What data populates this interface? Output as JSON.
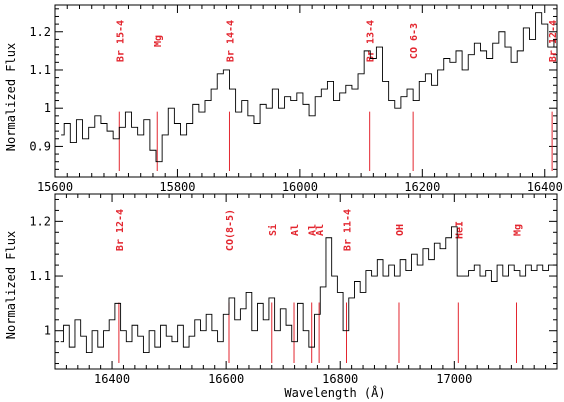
{
  "chart_data": [
    {
      "type": "line",
      "panel": "top",
      "ylabel": "Normalized Flux",
      "xlabel": "",
      "xlim": [
        15600,
        16420
      ],
      "ylim": [
        0.82,
        1.27
      ],
      "xticks": [
        15600,
        15800,
        16000,
        16200,
        16400
      ],
      "xtick_labels": [
        "15600",
        "15800",
        "16000",
        "16200",
        "16400"
      ],
      "yticks": [
        0.9,
        1.0,
        1.1,
        1.2
      ],
      "ytick_labels": [
        "0.9",
        "1",
        "1.1",
        "1.2"
      ],
      "line_marks": [
        {
          "label": "Br 15-4",
          "x": 15705
        },
        {
          "label": "Mg",
          "x": 15767
        },
        {
          "label": "Br 14-4",
          "x": 15885
        },
        {
          "label": "Br 13-4",
          "x": 16114
        },
        {
          "label": "CO 6-3",
          "x": 16185
        },
        {
          "label": "Br 12-4",
          "x": 16412
        }
      ],
      "series": [
        {
          "x": [
            15610,
            15620,
            15630,
            15640,
            15650,
            15660,
            15670,
            15680,
            15690,
            15700,
            15710,
            15720,
            15730,
            15740,
            15750,
            15760,
            15770,
            15780,
            15790,
            15800,
            15810,
            15820,
            15830,
            15840,
            15850,
            15860,
            15870,
            15880,
            15890,
            15900,
            15910,
            15920,
            15930,
            15940,
            15950,
            15960,
            15970,
            15980,
            15990,
            16000,
            16010,
            16020,
            16030,
            16040,
            16050,
            16060,
            16070,
            16080,
            16090,
            16100,
            16110,
            16120,
            16130,
            16140,
            16150,
            16160,
            16170,
            16180,
            16190,
            16200,
            16210,
            16220,
            16230,
            16240,
            16250,
            16260,
            16270,
            16280,
            16290,
            16300,
            16310,
            16320,
            16330,
            16340,
            16350,
            16360,
            16370,
            16380,
            16390,
            16400,
            16410,
            16420
          ],
          "y": [
            0.93,
            0.96,
            0.91,
            0.97,
            0.92,
            0.95,
            0.98,
            0.96,
            0.94,
            0.92,
            0.95,
            0.99,
            0.95,
            0.93,
            0.97,
            0.89,
            0.86,
            0.93,
            1.0,
            0.96,
            0.93,
            0.96,
            1.01,
            0.99,
            1.02,
            1.05,
            1.09,
            1.1,
            1.05,
            0.99,
            1.02,
            0.98,
            0.96,
            1.01,
            1.0,
            1.05,
            1.0,
            1.03,
            1.02,
            1.04,
            1.01,
            0.98,
            1.03,
            1.05,
            1.07,
            1.02,
            1.04,
            1.06,
            1.05,
            1.09,
            1.15,
            1.13,
            1.16,
            1.07,
            1.02,
            1.0,
            1.03,
            1.05,
            1.02,
            1.07,
            1.09,
            1.06,
            1.1,
            1.13,
            1.12,
            1.15,
            1.1,
            1.14,
            1.17,
            1.15,
            1.13,
            1.17,
            1.2,
            1.16,
            1.12,
            1.15,
            1.21,
            1.18,
            1.25,
            1.22,
            1.16,
            1.18
          ]
        }
      ]
    },
    {
      "type": "line",
      "panel": "bottom",
      "ylabel": "Normalized Flux",
      "xlabel": "Wavelength (Å)",
      "xlim": [
        16300,
        17180
      ],
      "ylim": [
        0.93,
        1.25
      ],
      "xticks": [
        16400,
        16600,
        16800,
        17000
      ],
      "xtick_labels": [
        "16400",
        "16600",
        "16800",
        "17000"
      ],
      "yticks": [
        1.0,
        1.1,
        1.2
      ],
      "ytick_labels": [
        "1",
        "1.1",
        "1.2"
      ],
      "line_marks": [
        {
          "label": "Br 12-4",
          "x": 16412
        },
        {
          "label": "CO(8-5)",
          "x": 16605
        },
        {
          "label": "Si",
          "x": 16680
        },
        {
          "label": "Al",
          "x": 16719
        },
        {
          "label": "Al",
          "x": 16750
        },
        {
          "label": "Al",
          "x": 16763
        },
        {
          "label": "Br 11-4",
          "x": 16811
        },
        {
          "label": "OH",
          "x": 16903
        },
        {
          "label": "HeI",
          "x": 17007
        },
        {
          "label": "Mg",
          "x": 17109
        }
      ],
      "series": [
        {
          "x": [
            16310,
            16320,
            16330,
            16340,
            16350,
            16360,
            16370,
            16380,
            16390,
            16400,
            16410,
            16420,
            16430,
            16440,
            16450,
            16460,
            16470,
            16480,
            16490,
            16500,
            16510,
            16520,
            16530,
            16540,
            16550,
            16560,
            16570,
            16580,
            16590,
            16600,
            16610,
            16620,
            16630,
            16640,
            16650,
            16660,
            16670,
            16680,
            16690,
            16700,
            16710,
            16720,
            16730,
            16740,
            16750,
            16760,
            16770,
            16780,
            16790,
            16800,
            16810,
            16820,
            16830,
            16840,
            16850,
            16860,
            16870,
            16880,
            16890,
            16900,
            16910,
            16920,
            16930,
            16940,
            16950,
            16960,
            16970,
            16980,
            16990,
            17000,
            17010,
            17020,
            17030,
            17040,
            17050,
            17060,
            17070,
            17080,
            17090,
            17100,
            17110,
            17120,
            17130,
            17140,
            17150,
            17160,
            17170,
            17180
          ],
          "y": [
            0.98,
            1.01,
            0.97,
            1.02,
            0.99,
            0.96,
            1.0,
            0.97,
            1.0,
            1.02,
            1.05,
            1.0,
            0.98,
            1.01,
            0.99,
            0.96,
            1.0,
            0.97,
            1.01,
            0.99,
            0.98,
            1.01,
            0.97,
            0.99,
            1.02,
            1.0,
            1.03,
            1.0,
            0.98,
            1.03,
            1.06,
            1.02,
            1.04,
            1.07,
            1.0,
            1.05,
            1.02,
            1.06,
            1.0,
            1.04,
            1.01,
            0.98,
            1.05,
            1.0,
            0.97,
            1.03,
            1.08,
            1.17,
            1.1,
            1.07,
            1.0,
            1.06,
            1.09,
            1.07,
            1.11,
            1.1,
            1.13,
            1.1,
            1.12,
            1.1,
            1.13,
            1.11,
            1.14,
            1.12,
            1.15,
            1.13,
            1.16,
            1.15,
            1.17,
            1.19,
            1.1,
            1.1,
            1.11,
            1.12,
            1.1,
            1.11,
            1.09,
            1.12,
            1.1,
            1.12,
            1.11,
            1.1,
            1.12,
            1.11,
            1.12,
            1.11,
            1.12,
            1.12
          ]
        }
      ]
    }
  ]
}
